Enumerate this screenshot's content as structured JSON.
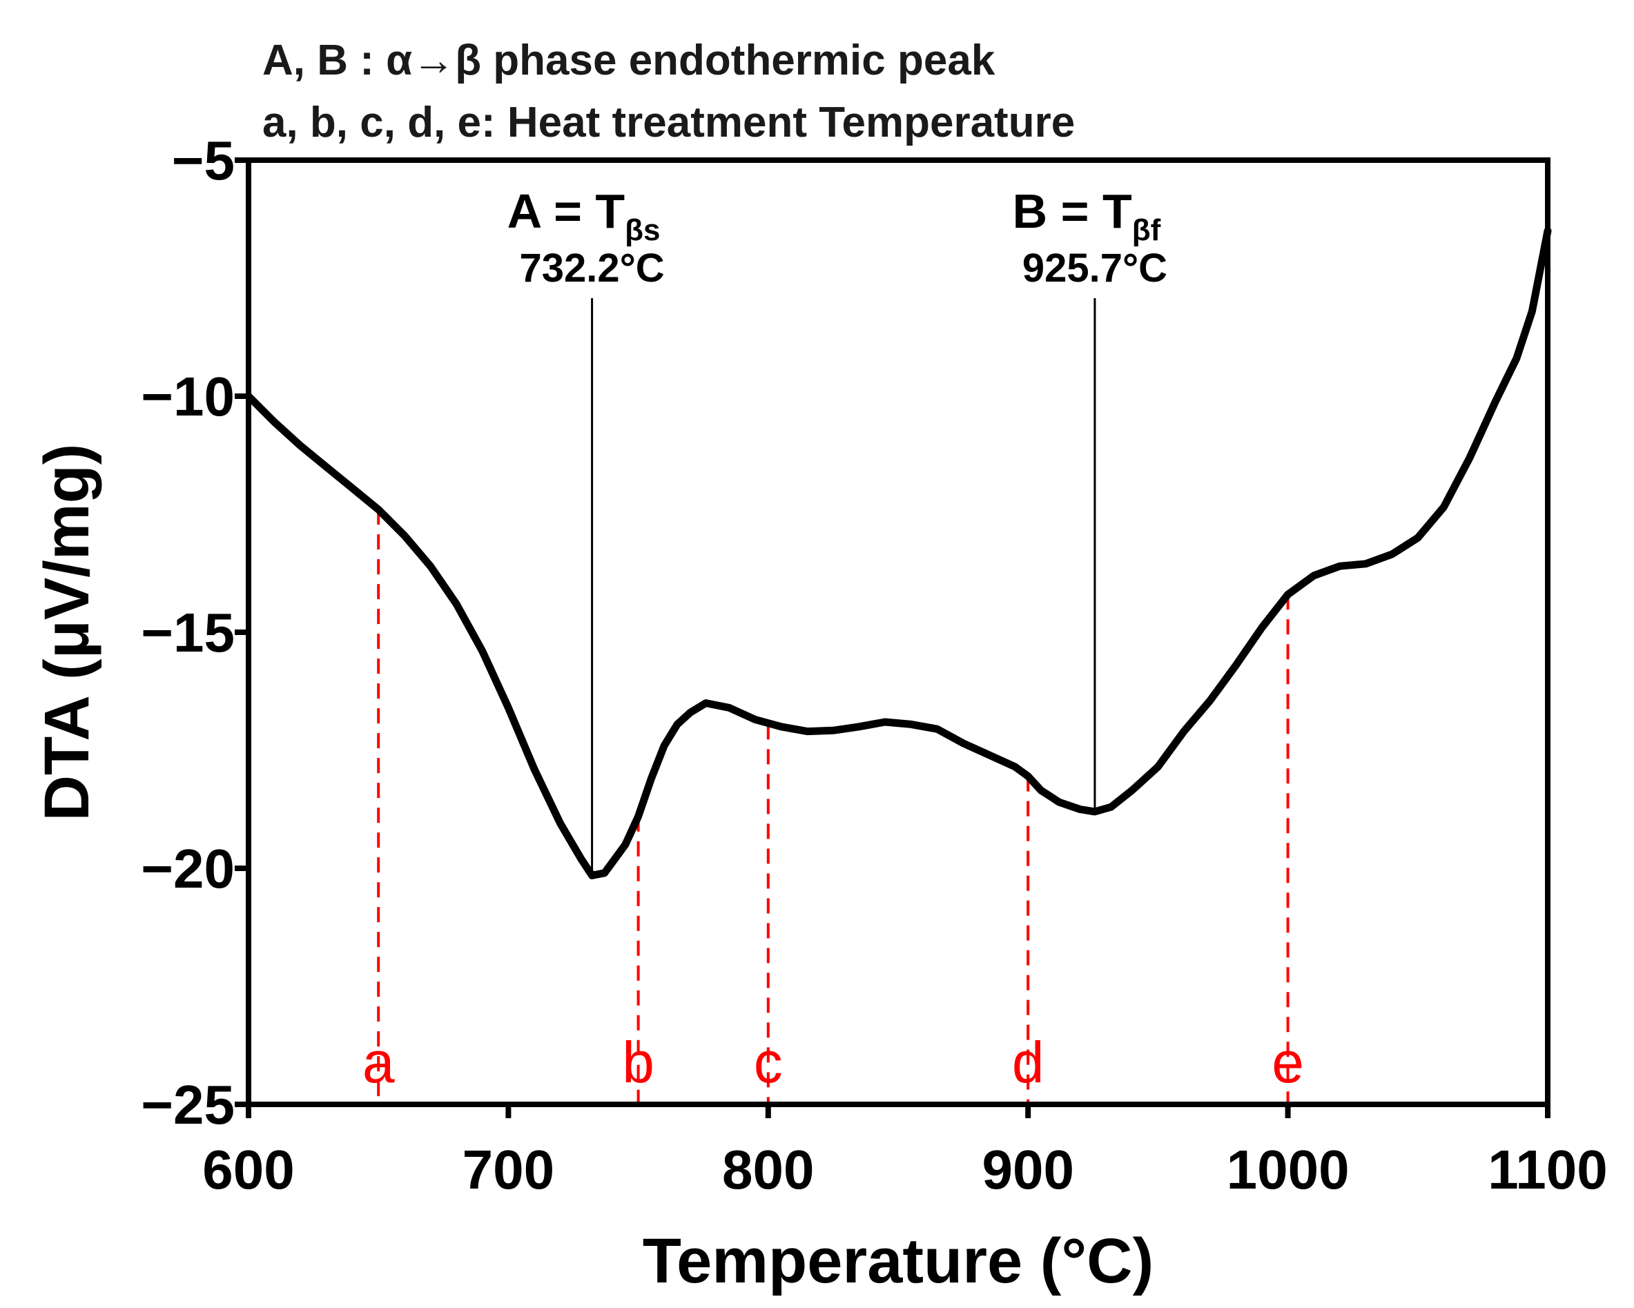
{
  "chart_data": {
    "type": "line",
    "title_lines": [
      "A, B : α→β phase endothermic peak",
      "a, b, c, d, e: Heat treatment Temperature"
    ],
    "xlabel": "Temperature (°C)",
    "ylabel": "DTA (μV/mg)",
    "xlim": [
      600,
      1100
    ],
    "ylim": [
      -25,
      -5
    ],
    "xticks": [
      600,
      700,
      800,
      900,
      1000,
      1100
    ],
    "yticks": [
      -5,
      -10,
      -15,
      -20,
      -25
    ],
    "ytick_labels": [
      "−5",
      "−10",
      "−15",
      "−20",
      "−25"
    ],
    "grid": false,
    "line_color": "#000000",
    "marker_color": "#ff0000",
    "series": [
      {
        "name": "DTA",
        "points": [
          [
            600,
            -10.0
          ],
          [
            610,
            -10.55
          ],
          [
            620,
            -11.05
          ],
          [
            630,
            -11.5
          ],
          [
            640,
            -11.95
          ],
          [
            650,
            -12.4
          ],
          [
            660,
            -12.95
          ],
          [
            670,
            -13.6
          ],
          [
            680,
            -14.4
          ],
          [
            690,
            -15.4
          ],
          [
            700,
            -16.6
          ],
          [
            710,
            -17.9
          ],
          [
            720,
            -19.05
          ],
          [
            728,
            -19.8
          ],
          [
            732.2,
            -20.15
          ],
          [
            737,
            -20.1
          ],
          [
            745,
            -19.5
          ],
          [
            750,
            -18.9
          ],
          [
            755,
            -18.1
          ],
          [
            760,
            -17.4
          ],
          [
            765,
            -16.95
          ],
          [
            770,
            -16.7
          ],
          [
            776,
            -16.5
          ],
          [
            785,
            -16.6
          ],
          [
            795,
            -16.85
          ],
          [
            805,
            -17.0
          ],
          [
            815,
            -17.1
          ],
          [
            825,
            -17.08
          ],
          [
            835,
            -17.0
          ],
          [
            845,
            -16.9
          ],
          [
            855,
            -16.95
          ],
          [
            865,
            -17.05
          ],
          [
            875,
            -17.35
          ],
          [
            885,
            -17.6
          ],
          [
            895,
            -17.85
          ],
          [
            900,
            -18.05
          ],
          [
            905,
            -18.35
          ],
          [
            912,
            -18.6
          ],
          [
            920,
            -18.75
          ],
          [
            925.7,
            -18.8
          ],
          [
            932,
            -18.7
          ],
          [
            940,
            -18.35
          ],
          [
            950,
            -17.85
          ],
          [
            960,
            -17.1
          ],
          [
            970,
            -16.45
          ],
          [
            980,
            -15.7
          ],
          [
            990,
            -14.9
          ],
          [
            1000,
            -14.2
          ],
          [
            1010,
            -13.8
          ],
          [
            1020,
            -13.6
          ],
          [
            1030,
            -13.55
          ],
          [
            1040,
            -13.35
          ],
          [
            1050,
            -13.0
          ],
          [
            1060,
            -12.35
          ],
          [
            1070,
            -11.3
          ],
          [
            1080,
            -10.1
          ],
          [
            1088,
            -9.2
          ],
          [
            1094,
            -8.2
          ],
          [
            1100,
            -6.5
          ]
        ]
      }
    ],
    "peaks": [
      {
        "id": "A",
        "label": "A = T",
        "subscript": "βs",
        "temp_label": "732.2°C",
        "x": 732.2,
        "y": -20.15
      },
      {
        "id": "B",
        "label": "B = T",
        "subscript": "βf",
        "temp_label": "925.7°C",
        "x": 925.7,
        "y": -18.8
      }
    ],
    "heat_treatment": [
      {
        "label": "a",
        "x": 650,
        "y": -12.4
      },
      {
        "label": "b",
        "x": 750,
        "y": -18.9
      },
      {
        "label": "c",
        "x": 800,
        "y": -16.95
      },
      {
        "label": "d",
        "x": 900,
        "y": -18.05
      },
      {
        "label": "e",
        "x": 1000,
        "y": -14.2
      }
    ]
  }
}
